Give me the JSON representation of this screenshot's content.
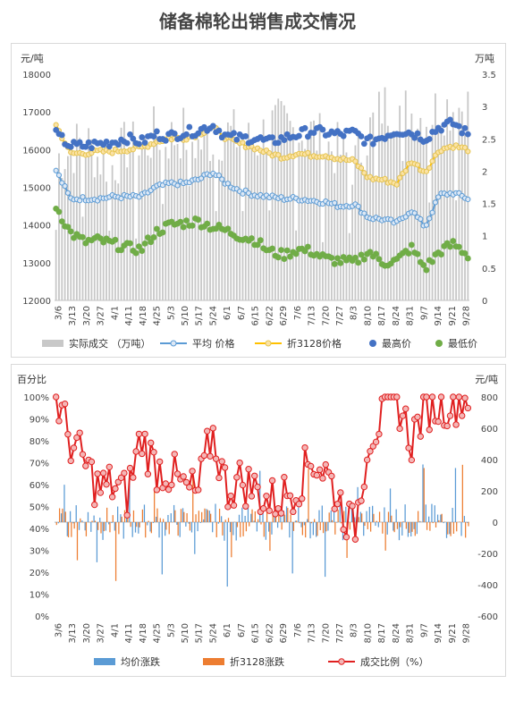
{
  "title": "储备棉轮出销售成交情况",
  "colors": {
    "volume": "#c8c8c8",
    "avg_price": "#5b9bd5",
    "price3128": "#ffc000",
    "high": "#4472c4",
    "low": "#70ad47",
    "avg_change": "#5b9bd5",
    "change3128": "#ed7d31",
    "ratio": "#e02020",
    "ratio_fill": "#f4b6b6"
  },
  "chart_data": [
    {
      "type": "bar+line+scatter",
      "y_left_label": "元/吨",
      "y_right_label": "万吨",
      "ylim_left": [
        12000,
        18000
      ],
      "ylim_right": [
        0,
        3.5
      ],
      "yticks_left": [
        "12000",
        "13000",
        "14000",
        "15000",
        "16000",
        "17000",
        "18000"
      ],
      "yticks_right": [
        "0",
        "0.5",
        "1",
        "1.5",
        "2",
        "2.5",
        "3",
        "3.5"
      ],
      "x_tick_labels": [
        "3/6",
        "3/13",
        "3/20",
        "3/27",
        "4/1",
        "4/11",
        "4/18",
        "4/25",
        "5/3",
        "5/10",
        "5/17",
        "5/24",
        "6/1",
        "6/7",
        "6/15",
        "6/22",
        "6/29",
        "7/6",
        "7/13",
        "7/20",
        "7/27",
        "8/3",
        "8/10",
        "8/17",
        "8/24",
        "8/31",
        "9/7",
        "9/14",
        "9/21",
        "9/28"
      ],
      "legend": [
        "实际成交 （万吨）",
        "平均 价格",
        "折3128价格",
        "最高价",
        "最低价"
      ],
      "legend_position": "bottom",
      "series_anchors": {
        "volume": [
          2.2,
          2.3,
          2.5,
          2.2,
          2.1,
          2.4,
          2.3,
          2.6,
          2.5,
          2.6,
          2.4,
          2.5,
          2.6,
          2.5,
          2.4,
          2.7,
          2.7,
          2.6,
          2.6,
          2.4,
          2.3,
          2.1,
          2.6,
          3.0,
          3.0,
          2.9,
          2.8,
          3.0,
          3.0,
          3.0
        ],
        "avg_price": [
          15450,
          14700,
          14700,
          14700,
          14750,
          14750,
          14750,
          15000,
          15100,
          15100,
          15200,
          15400,
          15100,
          14900,
          14800,
          14750,
          14700,
          14700,
          14650,
          14600,
          14500,
          14550,
          14200,
          14150,
          14050,
          14400,
          13950,
          14800,
          14850,
          14700
        ],
        "price3128": [
          16650,
          15900,
          15900,
          15950,
          15950,
          16000,
          16050,
          16200,
          16300,
          16300,
          16400,
          16600,
          16300,
          16150,
          16050,
          15900,
          15800,
          15900,
          15850,
          15850,
          15750,
          15700,
          15250,
          15200,
          15100,
          15700,
          15400,
          16000,
          16100,
          16000
        ],
        "high": [
          16400,
          16100,
          16100,
          16150,
          16200,
          16300,
          16200,
          16400,
          16350,
          16450,
          16500,
          16650,
          16350,
          16300,
          16300,
          16200,
          16300,
          16400,
          16500,
          16450,
          16400,
          16450,
          16200,
          16350,
          16500,
          16450,
          16300,
          16600,
          16700,
          16400
        ],
        "low": [
          14500,
          13800,
          13550,
          13600,
          13500,
          13400,
          13350,
          13800,
          14000,
          14050,
          14100,
          13950,
          13850,
          13700,
          13600,
          13300,
          13200,
          13350,
          13300,
          13100,
          13050,
          13000,
          13300,
          13000,
          13050,
          13400,
          12850,
          13300,
          13500,
          13200
        ]
      }
    },
    {
      "type": "bar+line",
      "y_left_label": "百分比",
      "y_right_label": "元/吨",
      "ylim_left": [
        0,
        100
      ],
      "ylim_right": [
        -600,
        800
      ],
      "yticks_left": [
        "0%",
        "10%",
        "20%",
        "30%",
        "40%",
        "50%",
        "60%",
        "70%",
        "80%",
        "90%",
        "100%"
      ],
      "yticks_right": [
        "-600",
        "-400",
        "-200",
        "0",
        "200",
        "400",
        "600",
        "800"
      ],
      "x_tick_labels": [
        "3/6",
        "3/13",
        "3/20",
        "3/27",
        "4/1",
        "4/11",
        "4/18",
        "4/25",
        "5/3",
        "5/10",
        "5/17",
        "5/24",
        "6/1",
        "6/7",
        "6/15",
        "6/22",
        "6/29",
        "7/6",
        "7/13",
        "7/20",
        "7/27",
        "8/3",
        "8/10",
        "8/17",
        "8/24",
        "8/31",
        "9/7",
        "9/14",
        "9/21",
        "9/28"
      ],
      "legend": [
        "均价涨跌",
        "折3128涨跌",
        "成交比例（%）"
      ],
      "legend_position": "bottom",
      "series_anchors": {
        "ratio": [
          100,
          80,
          70,
          58,
          60,
          55,
          82,
          68,
          66,
          58,
          56,
          84,
          58,
          62,
          58,
          52,
          55,
          60,
          72,
          66,
          52,
          38,
          82,
          90,
          100,
          80,
          96,
          96,
          98,
          100
        ]
      }
    }
  ]
}
